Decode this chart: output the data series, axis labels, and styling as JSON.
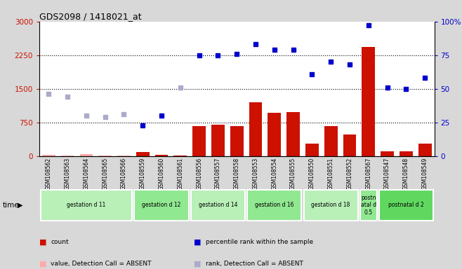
{
  "title": "GDS2098 / 1418021_at",
  "samples": [
    "GSM108562",
    "GSM108563",
    "GSM108564",
    "GSM108565",
    "GSM108566",
    "GSM108559",
    "GSM108560",
    "GSM108561",
    "GSM108556",
    "GSM108557",
    "GSM108558",
    "GSM108553",
    "GSM108554",
    "GSM108555",
    "GSM108550",
    "GSM108551",
    "GSM108552",
    "GSM108567",
    "GSM108547",
    "GSM108548",
    "GSM108549"
  ],
  "count_values": [
    30,
    10,
    50,
    10,
    10,
    90,
    30,
    10,
    660,
    700,
    660,
    1200,
    970,
    980,
    280,
    660,
    480,
    2440,
    110,
    110,
    280
  ],
  "count_absent": [
    true,
    true,
    true,
    true,
    true,
    false,
    false,
    false,
    false,
    false,
    false,
    false,
    false,
    false,
    false,
    false,
    false,
    false,
    false,
    false,
    false
  ],
  "rank_pct": [
    46,
    44,
    30,
    29,
    31,
    23,
    30,
    51,
    75,
    75,
    76,
    83,
    79,
    79,
    61,
    70,
    68,
    97,
    51,
    50,
    58
  ],
  "rank_absent": [
    true,
    true,
    true,
    true,
    true,
    false,
    false,
    true,
    false,
    false,
    false,
    false,
    false,
    false,
    false,
    false,
    false,
    false,
    false,
    false,
    false
  ],
  "groups": [
    {
      "label": "gestation d 11",
      "start": 0,
      "end": 4,
      "color": "#b8f0b8"
    },
    {
      "label": "gestation d 12",
      "start": 5,
      "end": 7,
      "color": "#90e890"
    },
    {
      "label": "gestation d 14",
      "start": 8,
      "end": 10,
      "color": "#b8f0b8"
    },
    {
      "label": "gestation d 16",
      "start": 11,
      "end": 13,
      "color": "#90e890"
    },
    {
      "label": "gestation d 18",
      "start": 14,
      "end": 16,
      "color": "#b8f0b8"
    },
    {
      "label": "postn\natal d\n0.5",
      "start": 17,
      "end": 17,
      "color": "#90e890"
    },
    {
      "label": "postnatal d 2",
      "start": 18,
      "end": 20,
      "color": "#60d860"
    }
  ],
  "ylim_left": [
    0,
    3000
  ],
  "ylim_right": [
    0,
    100
  ],
  "yticks_left": [
    0,
    750,
    1500,
    2250,
    3000
  ],
  "yticks_right": [
    0,
    25,
    50,
    75,
    100
  ],
  "bar_color": "#cc1100",
  "bar_absent_color": "#ffaaaa",
  "rank_color": "#0000cc",
  "rank_absent_color": "#aaaacc",
  "bg_color": "#d8d8d8",
  "plot_bg": "#ffffff",
  "legend_items": [
    {
      "label": "count",
      "color": "#cc1100"
    },
    {
      "label": "percentile rank within the sample",
      "color": "#0000cc"
    },
    {
      "label": "value, Detection Call = ABSENT",
      "color": "#ffaaaa"
    },
    {
      "label": "rank, Detection Call = ABSENT",
      "color": "#aaaacc"
    }
  ]
}
